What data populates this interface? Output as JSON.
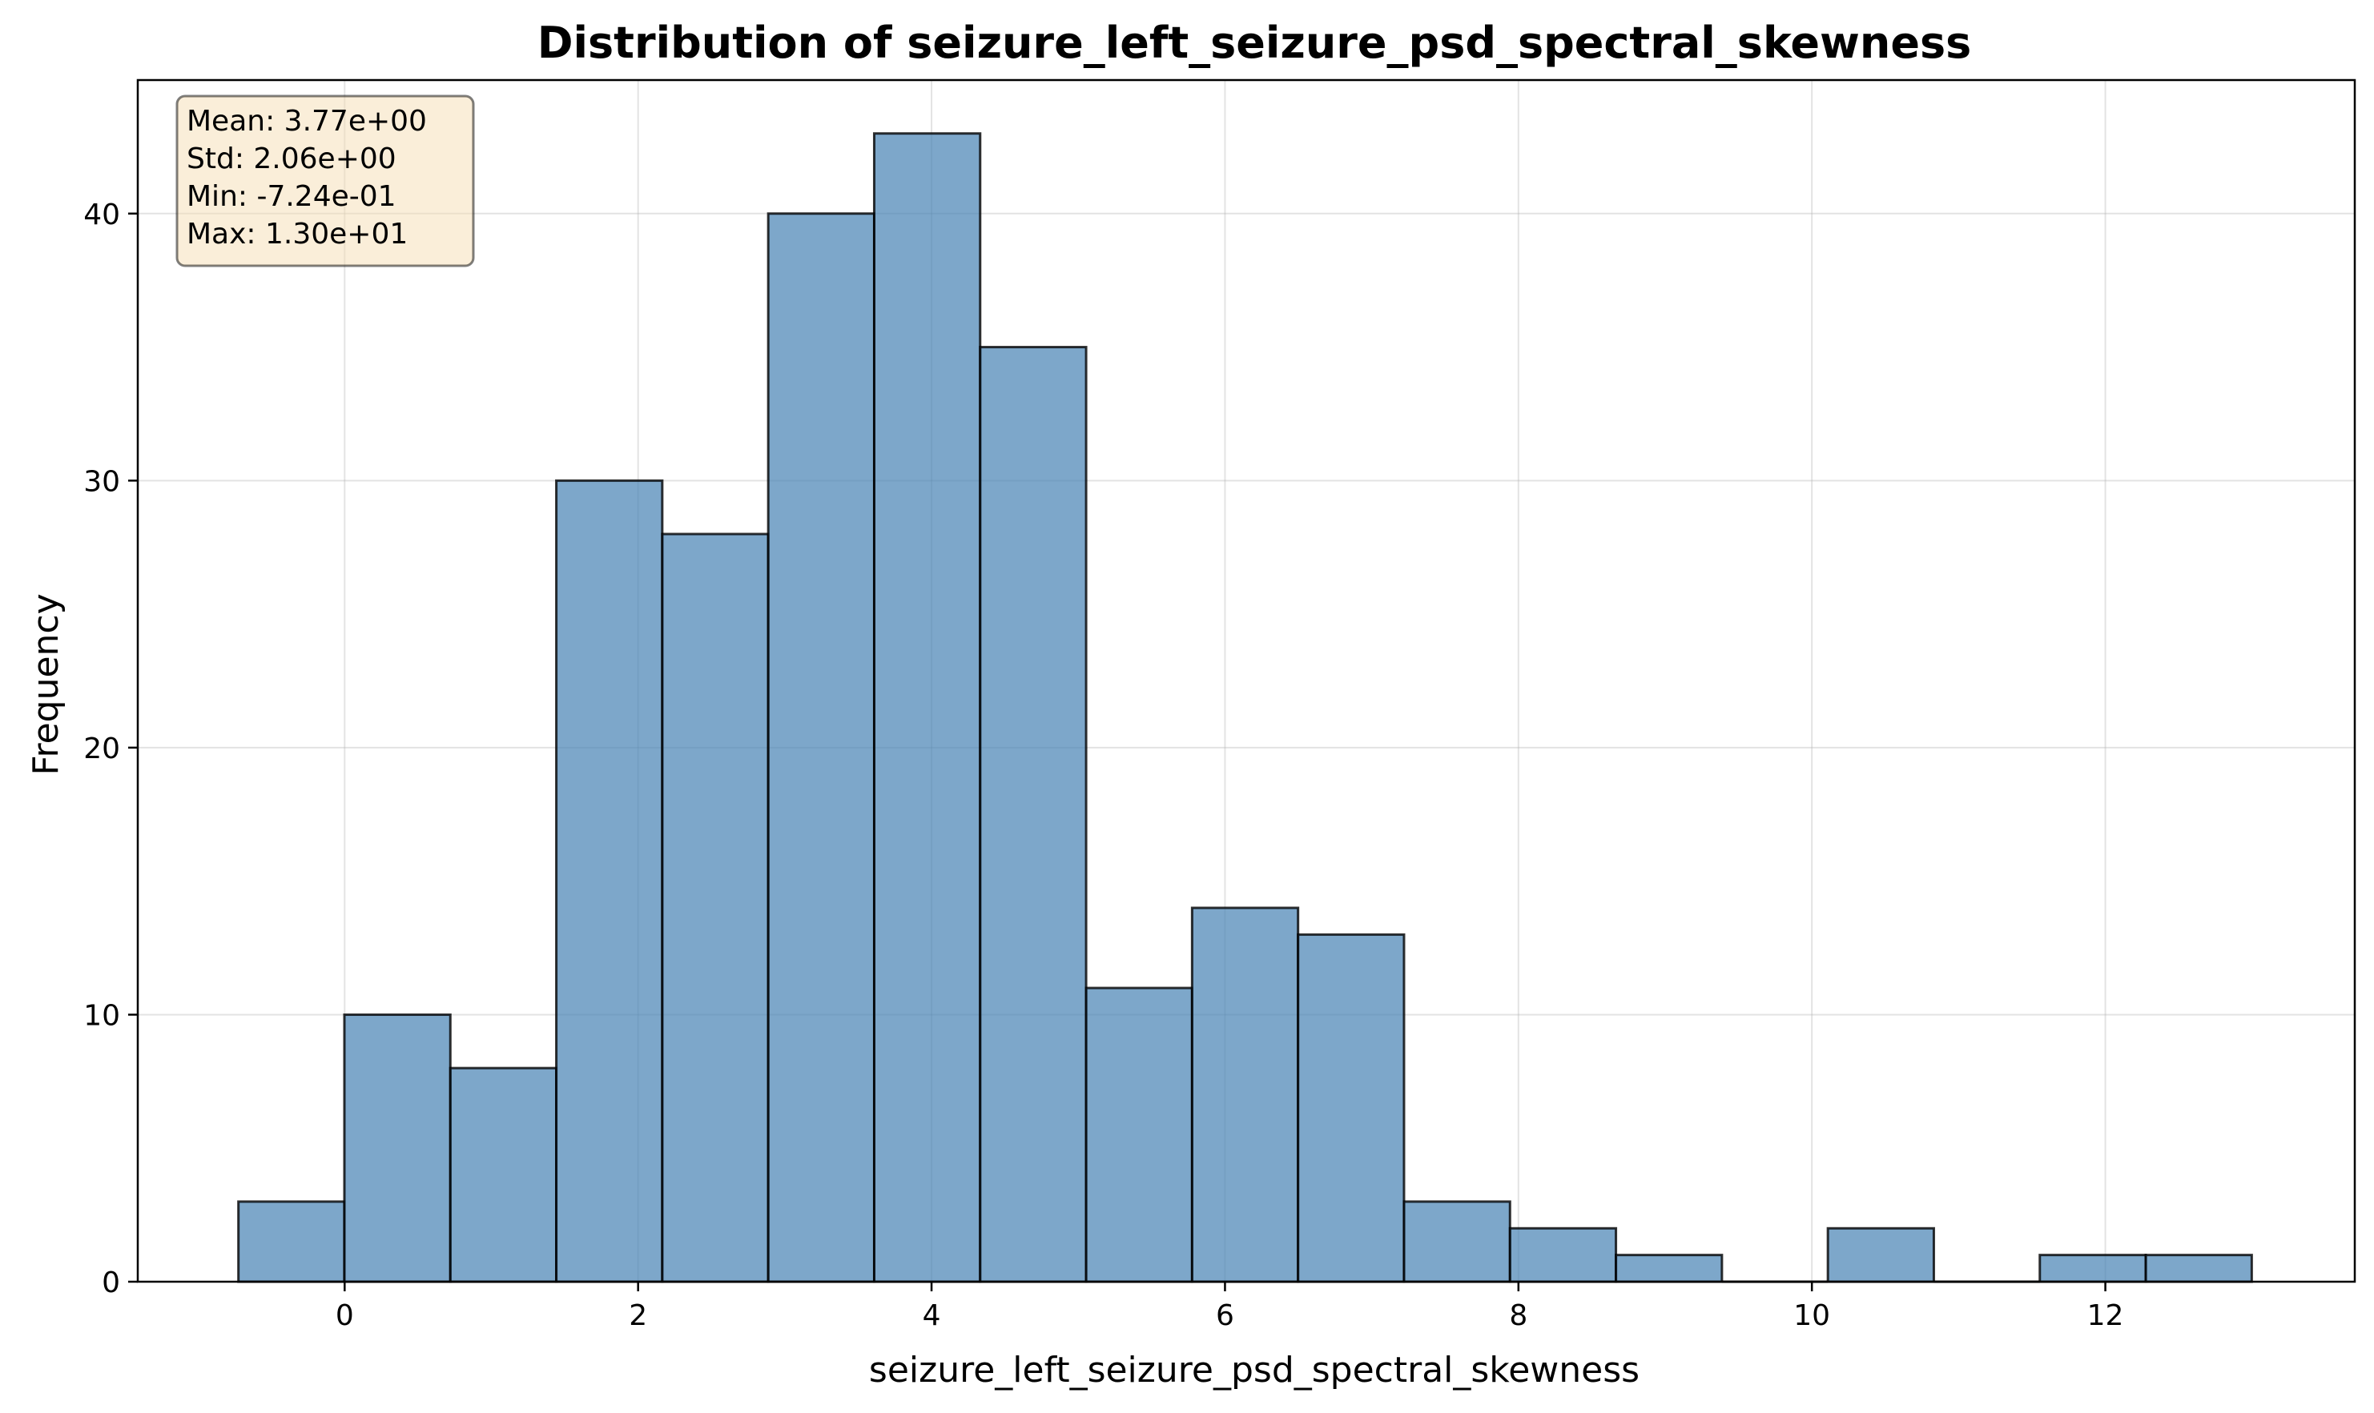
{
  "chart_data": {
    "type": "bar",
    "title": "Distribution of seizure_left_seizure_psd_spectral_skewness",
    "xlabel": "seizure_left_seizure_psd_spectral_skewness",
    "ylabel": "Frequency",
    "xlim": [
      -1.41,
      13.7
    ],
    "ylim": [
      0,
      45
    ],
    "x_ticks": [
      0,
      2,
      4,
      6,
      8,
      10,
      12
    ],
    "y_ticks": [
      0,
      10,
      20,
      30,
      40
    ],
    "grid": true,
    "bin_edges": [
      -0.724,
      -0.0018,
      0.7204,
      1.4426,
      2.1648,
      2.887,
      3.6092,
      4.3314,
      5.0536,
      5.7758,
      6.498,
      7.2202,
      7.9424,
      8.6646,
      9.3868,
      10.109,
      10.8312,
      11.5534,
      12.2756,
      12.9978
    ],
    "values": [
      3,
      10,
      8,
      30,
      28,
      40,
      43,
      35,
      11,
      14,
      13,
      3,
      2,
      1,
      0,
      2,
      0,
      1,
      1
    ],
    "colors": {
      "bar_fill": "#4682b4",
      "bar_edge": "#000000",
      "stats_box_fill": "#f5deb3",
      "stats_box_edge": "#000000"
    },
    "stats_box": {
      "position": "top-left",
      "lines": [
        "Mean: 3.77e+00",
        "Std: 2.06e+00",
        "Min: -7.24e-01",
        "Max: 1.30e+01"
      ]
    }
  }
}
